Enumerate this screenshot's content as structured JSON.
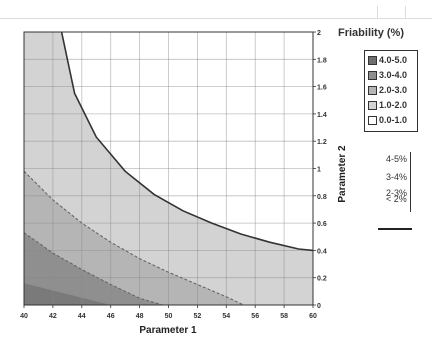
{
  "chart_data": {
    "type": "area",
    "xlabel": "Parameter 1",
    "ylabel": "Parameter 2",
    "xlim": [
      40,
      60
    ],
    "ylim": [
      0,
      2
    ],
    "xticks": [
      "40",
      "42",
      "44",
      "46",
      "48",
      "50",
      "52",
      "54",
      "56",
      "58",
      "60"
    ],
    "yticks": [
      "0",
      "0.2",
      "0.4",
      "0.6",
      "0.8",
      "1",
      "1.2",
      "1.4",
      "1.6",
      "1.8",
      "2"
    ],
    "legend": {
      "title": "Friability (%)",
      "placement": "right",
      "entries": [
        "4.0-5.0",
        "3.0-4.0",
        "2.0-3.0",
        "1.0-2.0",
        "0.0-1.0"
      ]
    },
    "secondary_legend": [
      "4-5%",
      "3-4%",
      "2-3%",
      "< 2%"
    ],
    "regions": [
      {
        "name": "0.0-1.0",
        "color": "#ffffff"
      },
      {
        "name": "1.0-2.0",
        "color": "#d3d3d3"
      },
      {
        "name": "2.0-3.0",
        "color": "#b5b5b5"
      },
      {
        "name": "3.0-4.0",
        "color": "#8f8f8f"
      }
    ],
    "boundaries": [
      {
        "name": "1.0-2.0 / 0.0-1.0",
        "style": "solid",
        "x": [
          42.6,
          43.5,
          45,
          47,
          49,
          51,
          53,
          55,
          57,
          59,
          60
        ],
        "y": [
          2.0,
          1.55,
          1.23,
          0.98,
          0.81,
          0.69,
          0.6,
          0.52,
          0.46,
          0.41,
          0.4
        ]
      },
      {
        "name": "2.0-3.0 / 1.0-2.0",
        "style": "dashed",
        "x": [
          40,
          42,
          44,
          46,
          48,
          50,
          52,
          54,
          55.2
        ],
        "y": [
          0.98,
          0.77,
          0.6,
          0.46,
          0.34,
          0.24,
          0.15,
          0.06,
          0.0
        ]
      },
      {
        "name": "3.0-4.0 / 2.0-3.0",
        "style": "dashed",
        "x": [
          40,
          42,
          44,
          46,
          48,
          49.6
        ],
        "y": [
          0.53,
          0.38,
          0.26,
          0.15,
          0.05,
          0.0
        ]
      }
    ],
    "grid": true
  }
}
